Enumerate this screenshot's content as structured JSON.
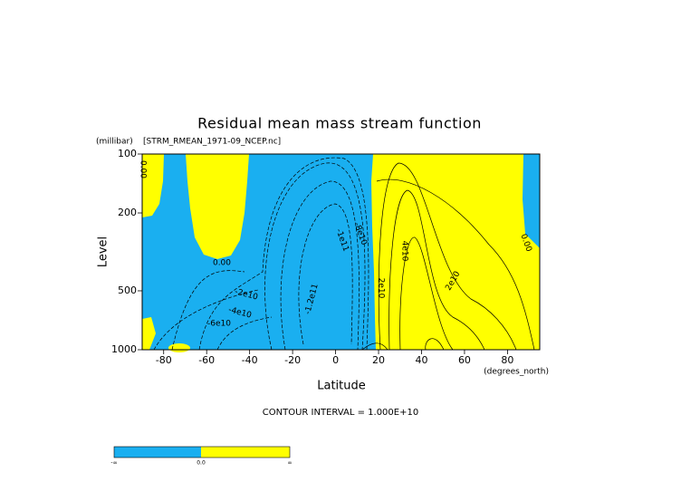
{
  "chart_data": {
    "type": "contour",
    "title": "Residual mean mass stream function",
    "subtitle": "[STRM_RMEAN_1971-09_NCEP.nc]",
    "x_label": "Latitude",
    "x_unit": "(degrees_north)",
    "y_label": "Level",
    "y_unit": "(millibar)",
    "xlim": [
      -90,
      95
    ],
    "xticks": [
      -80,
      -60,
      -40,
      -20,
      0,
      20,
      40,
      60,
      80
    ],
    "ylim": [
      1000,
      100
    ],
    "yticks": [
      100,
      200,
      500,
      1000
    ],
    "y_log": true,
    "contour_interval": "CONTOUR INTERVAL = 1.000E+10",
    "contour_labels": [
      "0.00",
      "0.00",
      "-2e10",
      "-4e10",
      "-6e10",
      "-1.2e11",
      "-1e11",
      "-8e10",
      "4e10",
      "2e10",
      "2e10",
      "0.00"
    ],
    "colors": {
      "negative": "#1aaff0",
      "positive": "#ffff00"
    },
    "colorbar": {
      "labels": [
        "-∞",
        "0.0",
        "∞"
      ]
    }
  }
}
